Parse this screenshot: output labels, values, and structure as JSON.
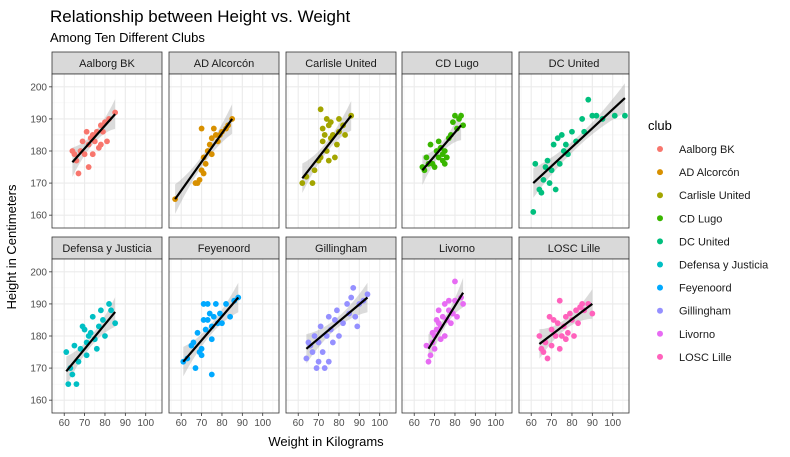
{
  "chart_data": {
    "type": "scatter",
    "title": "Relationship between Height vs. Weight",
    "subtitle": "Among Ten Different Clubs",
    "xlabel": "Weight in Kilograms",
    "ylabel": "Height in Centimeters",
    "xlim": [
      54,
      108
    ],
    "ylim": [
      156,
      204
    ],
    "x_ticks": [
      60,
      70,
      80,
      90,
      100
    ],
    "y_ticks": [
      160,
      170,
      180,
      190,
      200
    ],
    "grid": true,
    "legend": {
      "title": "club",
      "position": "right"
    },
    "facets": [
      {
        "name": "Aalborg BK",
        "color": "#F8766D",
        "points": [
          [
            64,
            180
          ],
          [
            65,
            179
          ],
          [
            66,
            177
          ],
          [
            67,
            173
          ],
          [
            68,
            180
          ],
          [
            69,
            183
          ],
          [
            70,
            179
          ],
          [
            71,
            186
          ],
          [
            72,
            182
          ],
          [
            72,
            175
          ],
          [
            73,
            184
          ],
          [
            74,
            185
          ],
          [
            74,
            179
          ],
          [
            75,
            183
          ],
          [
            76,
            186
          ],
          [
            77,
            181
          ],
          [
            78,
            182
          ],
          [
            78,
            188
          ],
          [
            79,
            186
          ],
          [
            80,
            189
          ],
          [
            81,
            183
          ],
          [
            82,
            190
          ],
          [
            85,
            192
          ]
        ],
        "fit": {
          "x": [
            64,
            85
          ],
          "y": [
            176.5,
            191.5
          ]
        }
      },
      {
        "name": "AD Alcorcón",
        "color": "#D89000",
        "points": [
          [
            57,
            165
          ],
          [
            67,
            170
          ],
          [
            68,
            170
          ],
          [
            69,
            171
          ],
          [
            70,
            187
          ],
          [
            70,
            174
          ],
          [
            71,
            173
          ],
          [
            71,
            178
          ],
          [
            72,
            176
          ],
          [
            73,
            180
          ],
          [
            74,
            182
          ],
          [
            75,
            184
          ],
          [
            75,
            179
          ],
          [
            76,
            187
          ],
          [
            77,
            185
          ],
          [
            78,
            183
          ],
          [
            79,
            185
          ],
          [
            80,
            186
          ],
          [
            82,
            187
          ],
          [
            83,
            188
          ],
          [
            85,
            190
          ]
        ],
        "fit": {
          "x": [
            57,
            85
          ],
          "y": [
            165,
            190
          ]
        }
      },
      {
        "name": "Carlisle United",
        "color": "#A3A500",
        "points": [
          [
            62,
            170
          ],
          [
            64,
            172
          ],
          [
            67,
            170
          ],
          [
            68,
            174
          ],
          [
            70,
            177
          ],
          [
            71,
            178
          ],
          [
            71,
            193
          ],
          [
            72,
            183
          ],
          [
            72,
            187
          ],
          [
            73,
            185
          ],
          [
            74,
            180
          ],
          [
            74,
            190
          ],
          [
            75,
            188
          ],
          [
            75,
            177
          ],
          [
            76,
            184
          ],
          [
            76,
            189
          ],
          [
            77,
            185
          ],
          [
            78,
            178
          ],
          [
            79,
            182
          ],
          [
            80,
            186
          ],
          [
            80,
            190
          ],
          [
            82,
            188
          ],
          [
            83,
            185
          ],
          [
            86,
            191
          ]
        ],
        "fit": {
          "x": [
            62,
            86
          ],
          "y": [
            171.5,
            191
          ]
        }
      },
      {
        "name": "CD Lugo",
        "color": "#39B600",
        "points": [
          [
            64,
            175
          ],
          [
            65,
            174
          ],
          [
            66,
            178
          ],
          [
            67,
            176
          ],
          [
            68,
            182
          ],
          [
            69,
            176
          ],
          [
            70,
            175
          ],
          [
            71,
            180
          ],
          [
            72,
            178
          ],
          [
            72,
            183
          ],
          [
            73,
            181
          ],
          [
            74,
            177
          ],
          [
            74,
            179
          ],
          [
            75,
            176
          ],
          [
            75,
            180
          ],
          [
            76,
            178
          ],
          [
            77,
            184
          ],
          [
            78,
            185
          ],
          [
            79,
            189
          ],
          [
            80,
            191
          ],
          [
            81,
            187
          ],
          [
            82,
            190
          ],
          [
            83,
            191
          ],
          [
            84,
            188
          ]
        ],
        "fit": {
          "x": [
            64,
            83
          ],
          "y": [
            174,
            188
          ]
        }
      },
      {
        "name": "DC United",
        "color": "#00BF7D",
        "points": [
          [
            61,
            161
          ],
          [
            62,
            176
          ],
          [
            64,
            168
          ],
          [
            65,
            167
          ],
          [
            66,
            171
          ],
          [
            67,
            175
          ],
          [
            68,
            177
          ],
          [
            69,
            170
          ],
          [
            70,
            174
          ],
          [
            71,
            182
          ],
          [
            72,
            168
          ],
          [
            73,
            184
          ],
          [
            74,
            176
          ],
          [
            75,
            185
          ],
          [
            76,
            180
          ],
          [
            77,
            182
          ],
          [
            78,
            179
          ],
          [
            80,
            186
          ],
          [
            82,
            183
          ],
          [
            85,
            190
          ],
          [
            86,
            186
          ],
          [
            88,
            196
          ],
          [
            90,
            191
          ],
          [
            92,
            191
          ],
          [
            95,
            190
          ],
          [
            101,
            191
          ],
          [
            106,
            191
          ]
        ],
        "fit": {
          "x": [
            61,
            106
          ],
          "y": [
            170,
            196.5
          ]
        }
      },
      {
        "name": "Defensa y Justicia",
        "color": "#00BFC4",
        "points": [
          [
            61,
            175
          ],
          [
            62,
            165
          ],
          [
            63,
            170
          ],
          [
            64,
            168
          ],
          [
            65,
            177
          ],
          [
            66,
            165
          ],
          [
            67,
            172
          ],
          [
            68,
            176
          ],
          [
            69,
            183
          ],
          [
            70,
            182
          ],
          [
            71,
            174
          ],
          [
            71,
            178
          ],
          [
            72,
            180
          ],
          [
            73,
            181
          ],
          [
            74,
            186
          ],
          [
            75,
            179
          ],
          [
            76,
            176
          ],
          [
            77,
            183
          ],
          [
            78,
            188
          ],
          [
            79,
            185
          ],
          [
            80,
            180
          ],
          [
            82,
            190
          ],
          [
            83,
            188
          ],
          [
            85,
            184
          ]
        ],
        "fit": {
          "x": [
            61,
            85
          ],
          "y": [
            169,
            187.5
          ]
        }
      },
      {
        "name": "Feyenoord",
        "color": "#00A9FF",
        "points": [
          [
            61,
            172
          ],
          [
            63,
            173
          ],
          [
            65,
            177
          ],
          [
            66,
            178
          ],
          [
            67,
            170
          ],
          [
            68,
            181
          ],
          [
            69,
            175
          ],
          [
            70,
            176
          ],
          [
            70,
            174
          ],
          [
            71,
            185
          ],
          [
            71,
            190
          ],
          [
            72,
            182
          ],
          [
            73,
            185
          ],
          [
            73,
            190
          ],
          [
            74,
            187
          ],
          [
            75,
            179
          ],
          [
            75,
            183
          ],
          [
            75,
            168
          ],
          [
            76,
            186
          ],
          [
            77,
            190
          ],
          [
            78,
            184
          ],
          [
            79,
            187
          ],
          [
            80,
            184
          ],
          [
            82,
            190
          ],
          [
            84,
            186
          ],
          [
            86,
            191
          ],
          [
            88,
            192
          ]
        ],
        "fit": {
          "x": [
            61,
            88
          ],
          "y": [
            172,
            192
          ]
        }
      },
      {
        "name": "Gillingham",
        "color": "#9590FF",
        "points": [
          [
            64,
            173
          ],
          [
            65,
            178
          ],
          [
            66,
            177
          ],
          [
            67,
            175
          ],
          [
            68,
            180
          ],
          [
            69,
            170
          ],
          [
            70,
            172
          ],
          [
            70,
            178
          ],
          [
            71,
            183
          ],
          [
            72,
            175
          ],
          [
            73,
            170
          ],
          [
            74,
            180
          ],
          [
            75,
            172
          ],
          [
            75,
            186
          ],
          [
            76,
            182
          ],
          [
            77,
            178
          ],
          [
            78,
            185
          ],
          [
            79,
            188
          ],
          [
            80,
            180
          ],
          [
            82,
            184
          ],
          [
            84,
            190
          ],
          [
            85,
            187
          ],
          [
            86,
            192
          ],
          [
            87,
            195
          ],
          [
            88,
            186
          ],
          [
            89,
            183
          ],
          [
            90,
            190
          ],
          [
            92,
            191
          ],
          [
            94,
            193
          ]
        ],
        "fit": {
          "x": [
            64,
            94
          ],
          "y": [
            176,
            192
          ]
        }
      },
      {
        "name": "Livorno",
        "color": "#E76BF3",
        "points": [
          [
            66,
            177
          ],
          [
            67,
            172
          ],
          [
            68,
            174
          ],
          [
            69,
            178
          ],
          [
            69,
            181
          ],
          [
            70,
            180
          ],
          [
            70,
            176
          ],
          [
            71,
            185
          ],
          [
            71,
            182
          ],
          [
            72,
            184
          ],
          [
            72,
            188
          ],
          [
            73,
            179
          ],
          [
            73,
            183
          ],
          [
            74,
            186
          ],
          [
            75,
            180
          ],
          [
            75,
            190
          ],
          [
            76,
            185
          ],
          [
            77,
            188
          ],
          [
            77,
            191
          ],
          [
            78,
            184
          ],
          [
            79,
            187
          ],
          [
            80,
            191
          ],
          [
            80,
            197
          ],
          [
            81,
            186
          ],
          [
            83,
            192
          ],
          [
            84,
            190
          ]
        ],
        "fit": {
          "x": [
            67,
            84
          ],
          "y": [
            176,
            193.5
          ]
        }
      },
      {
        "name": "LOSC Lille",
        "color": "#FF62BC",
        "points": [
          [
            64,
            180
          ],
          [
            65,
            176
          ],
          [
            66,
            175
          ],
          [
            67,
            178
          ],
          [
            68,
            173
          ],
          [
            69,
            186
          ],
          [
            70,
            182
          ],
          [
            70,
            177
          ],
          [
            71,
            185
          ],
          [
            72,
            180
          ],
          [
            73,
            184
          ],
          [
            74,
            191
          ],
          [
            74,
            176
          ],
          [
            75,
            180
          ],
          [
            76,
            183
          ],
          [
            77,
            186
          ],
          [
            77,
            179
          ],
          [
            78,
            181
          ],
          [
            79,
            187
          ],
          [
            80,
            185
          ],
          [
            81,
            180
          ],
          [
            82,
            188
          ],
          [
            83,
            184
          ],
          [
            84,
            189
          ],
          [
            85,
            190
          ],
          [
            86,
            188
          ],
          [
            88,
            190
          ],
          [
            90,
            187
          ]
        ],
        "fit": {
          "x": [
            64,
            90
          ],
          "y": [
            177.5,
            190
          ]
        }
      }
    ]
  }
}
